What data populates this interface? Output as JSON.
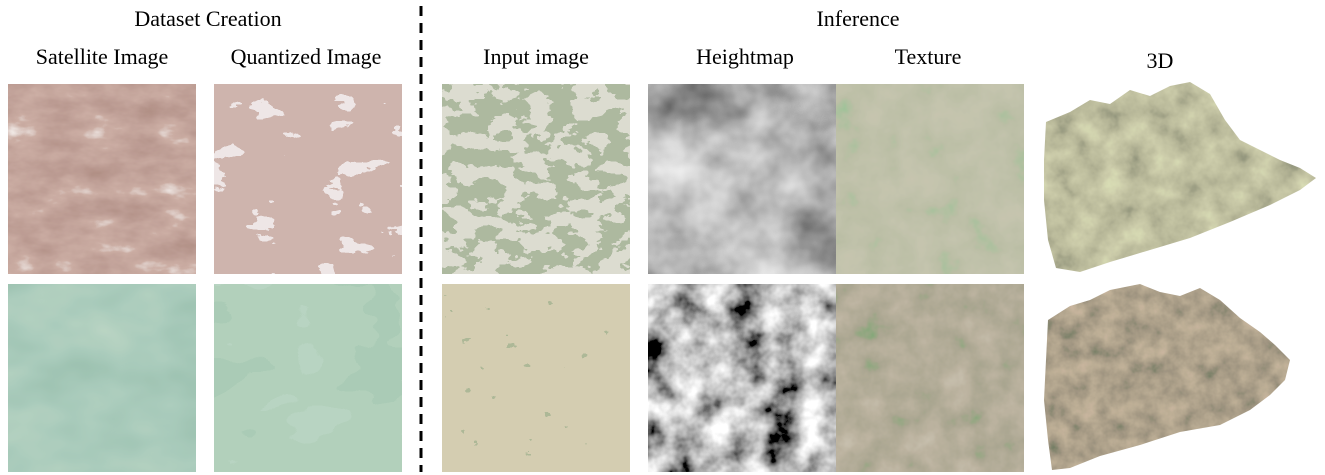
{
  "sections": [
    {
      "title": "Dataset Creation",
      "columns": [
        "Satellite Image",
        "Quantized Image"
      ]
    },
    {
      "title": "Inference",
      "columns": [
        "Input image",
        "Heightmap",
        "Texture",
        "3D"
      ]
    }
  ]
}
